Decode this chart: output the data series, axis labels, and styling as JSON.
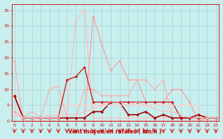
{
  "title": "",
  "xlabel": "Vent moyen/en rafales ( km/h )",
  "ylabel": "",
  "background_color": "#c8eeee",
  "grid_color": "#a8d4d4",
  "x_ticks": [
    0,
    1,
    2,
    3,
    4,
    5,
    6,
    7,
    8,
    9,
    10,
    11,
    12,
    13,
    14,
    15,
    16,
    17,
    18,
    19,
    20,
    21,
    22,
    23
  ],
  "ylim": [
    0,
    37
  ],
  "xlim": [
    -0.3,
    23.3
  ],
  "series": [
    {
      "x": [
        0,
        1,
        2,
        3,
        4,
        5,
        6,
        7,
        8,
        9,
        10,
        11,
        12,
        13,
        14,
        15,
        16,
        17,
        18,
        19,
        20,
        21,
        22,
        23
      ],
      "y": [
        19,
        0,
        0,
        0,
        0,
        0,
        0,
        0,
        0,
        0,
        0,
        0,
        0,
        0,
        0,
        0,
        0,
        0,
        0,
        0,
        0,
        0,
        0,
        0
      ],
      "color": "#ffaaaa",
      "lw": 0.8,
      "marker": "D",
      "ms": 1.5
    },
    {
      "x": [
        0,
        1,
        2,
        3,
        4,
        5,
        6,
        7,
        8,
        9,
        10,
        11,
        12,
        13,
        14,
        15,
        16,
        17,
        18,
        19,
        20,
        21,
        22,
        23
      ],
      "y": [
        3,
        1,
        1,
        1,
        1,
        1,
        1,
        32,
        35,
        1,
        1,
        1,
        1,
        1,
        1,
        1,
        1,
        1,
        1,
        1,
        1,
        1,
        1,
        1
      ],
      "color": "#ffbbbb",
      "lw": 0.8,
      "marker": "D",
      "ms": 1.5
    },
    {
      "x": [
        0,
        1,
        2,
        3,
        4,
        5,
        6,
        7,
        8,
        9,
        10,
        11,
        12,
        13,
        14,
        15,
        16,
        17,
        18,
        19,
        20,
        21,
        22,
        23
      ],
      "y": [
        8,
        1,
        1,
        1,
        1,
        1,
        1,
        1,
        1,
        33,
        24,
        16,
        19,
        13,
        13,
        6,
        6,
        6,
        10,
        10,
        6,
        0,
        1,
        1
      ],
      "color": "#ff9898",
      "lw": 0.8,
      "marker": "D",
      "ms": 1.5
    },
    {
      "x": [
        0,
        1,
        2,
        3,
        4,
        5,
        6,
        7,
        8,
        9,
        10,
        11,
        12,
        13,
        14,
        15,
        16,
        17,
        18,
        19,
        20,
        21,
        22,
        23
      ],
      "y": [
        3,
        1,
        3,
        1,
        10,
        11,
        1,
        1,
        10,
        10,
        8,
        8,
        8,
        8,
        13,
        13,
        10,
        13,
        1,
        1,
        1,
        1,
        1,
        1
      ],
      "color": "#ffaaaa",
      "lw": 0.8,
      "marker": "D",
      "ms": 1.5
    },
    {
      "x": [
        0,
        1,
        2,
        3,
        4,
        5,
        6,
        7,
        8,
        9,
        10,
        11,
        12,
        13,
        14,
        15,
        16,
        17,
        18,
        19,
        20,
        21,
        22,
        23
      ],
      "y": [
        8,
        1,
        1,
        1,
        1,
        1,
        13,
        14,
        17,
        6,
        6,
        6,
        6,
        6,
        6,
        6,
        6,
        6,
        6,
        1,
        1,
        1,
        1,
        1
      ],
      "color": "#cc2020",
      "lw": 1.0,
      "marker": "D",
      "ms": 2.0
    },
    {
      "x": [
        0,
        1,
        2,
        3,
        4,
        5,
        6,
        7,
        8,
        9,
        10,
        11,
        12,
        13,
        14,
        15,
        16,
        17,
        18,
        19,
        20,
        21,
        22,
        23
      ],
      "y": [
        8,
        1,
        1,
        1,
        1,
        1,
        1,
        1,
        1,
        3,
        3,
        6,
        6,
        2,
        2,
        3,
        1,
        2,
        1,
        1,
        1,
        2,
        1,
        1
      ],
      "color": "#aa0000",
      "lw": 1.2,
      "marker": "D",
      "ms": 2.0
    },
    {
      "x": [
        0,
        1,
        2,
        3,
        4,
        5,
        6,
        7,
        8,
        9,
        10,
        11,
        12,
        13,
        14,
        15,
        16,
        17,
        18,
        19,
        20,
        21,
        22,
        23
      ],
      "y": [
        5,
        1,
        1,
        1,
        1,
        1,
        5,
        5,
        5,
        5,
        5,
        5,
        5,
        5,
        5,
        5,
        5,
        5,
        5,
        5,
        5,
        5,
        1,
        1
      ],
      "color": "#ffcccc",
      "lw": 0.8,
      "marker": "D",
      "ms": 1.5
    },
    {
      "x": [
        0,
        1,
        2,
        3,
        4,
        5,
        6,
        7,
        8,
        9,
        10,
        11,
        12,
        13,
        14,
        15,
        16,
        17,
        18,
        19,
        20,
        21,
        22,
        23
      ],
      "y": [
        2,
        1,
        1,
        1,
        2,
        2,
        2,
        2,
        3,
        4,
        5,
        6,
        6,
        5,
        6,
        5,
        4,
        3,
        3,
        2,
        1,
        1,
        1,
        1
      ],
      "color": "#ffbbbb",
      "lw": 0.8,
      "marker": null,
      "ms": 0
    }
  ],
  "yticks": [
    0,
    5,
    10,
    15,
    20,
    25,
    30,
    35
  ]
}
